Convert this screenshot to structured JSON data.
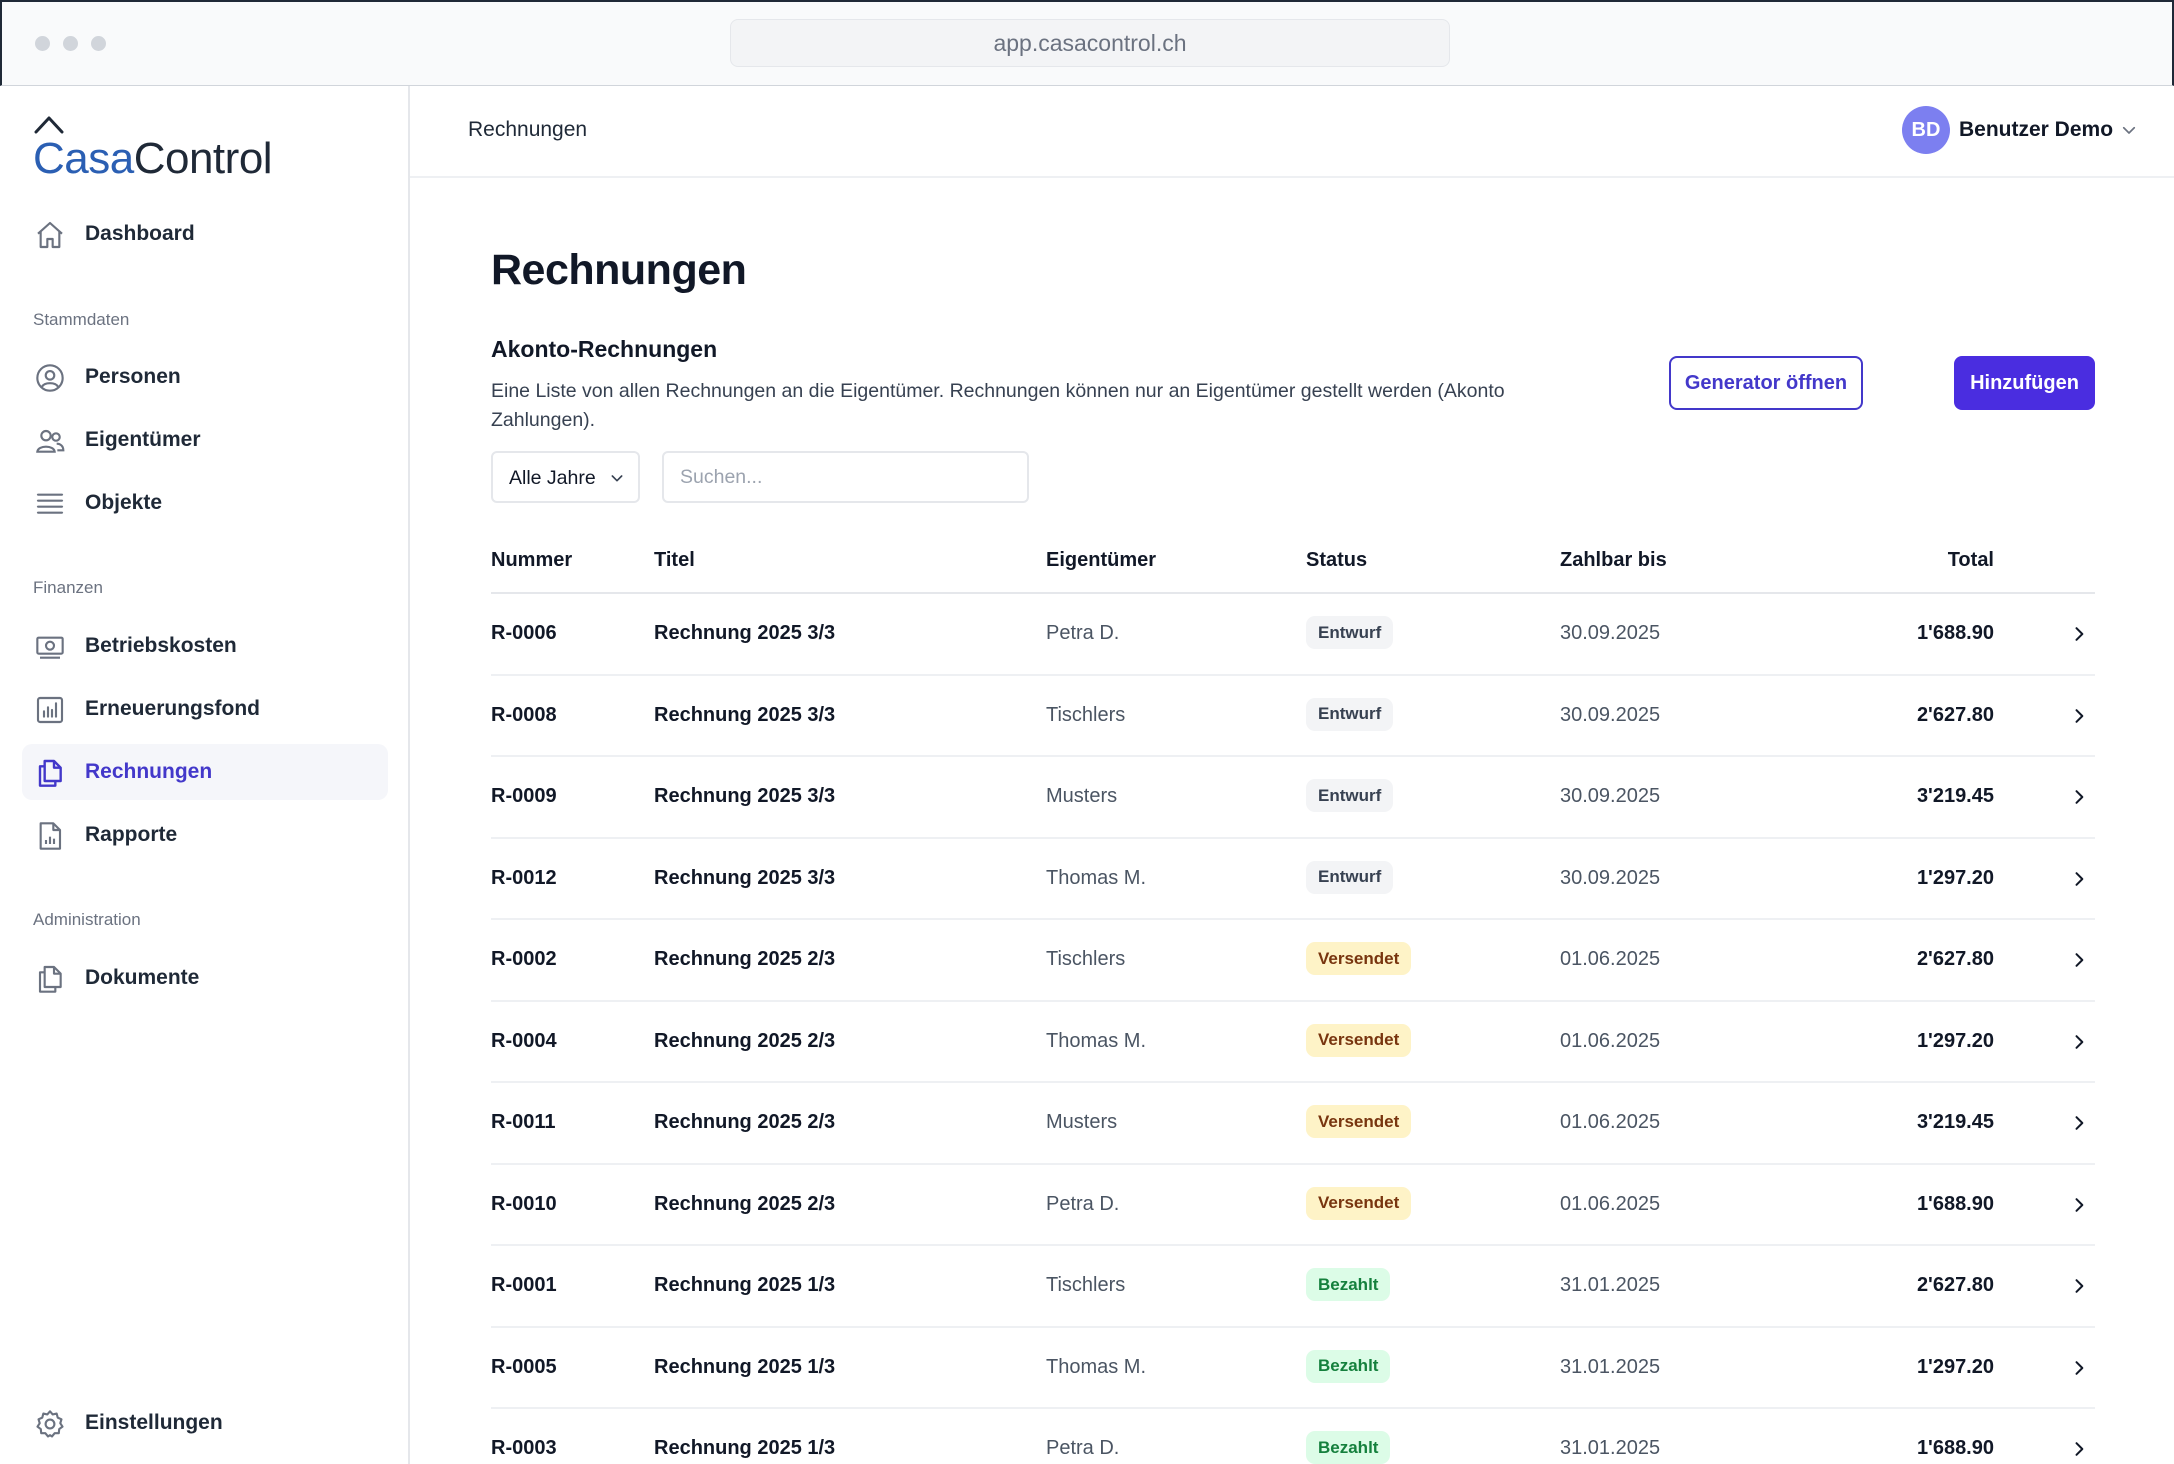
{
  "browser": {
    "url": "app.casacontrol.ch"
  },
  "brand": {
    "logo_part1": "Casa",
    "logo_part2": "Control",
    "accent": "#4338ca",
    "logo_blue": "#2b5fb3"
  },
  "sidebar": {
    "top_items": [
      {
        "label": "Dashboard",
        "icon": "home-icon"
      }
    ],
    "sections": [
      {
        "title": "Stammdaten",
        "items": [
          {
            "label": "Personen",
            "icon": "user-circle-icon"
          },
          {
            "label": "Eigentümer",
            "icon": "users-icon"
          },
          {
            "label": "Objekte",
            "icon": "list-icon"
          }
        ]
      },
      {
        "title": "Finanzen",
        "items": [
          {
            "label": "Betriebskosten",
            "icon": "money-icon"
          },
          {
            "label": "Erneuerungsfond",
            "icon": "bar-chart-icon"
          },
          {
            "label": "Rechnungen",
            "icon": "documents-icon",
            "active": true
          },
          {
            "label": "Rapporte",
            "icon": "report-icon"
          }
        ]
      },
      {
        "title": "Administration",
        "items": [
          {
            "label": "Dokumente",
            "icon": "documents-icon"
          }
        ]
      }
    ],
    "bottom_item": {
      "label": "Einstellungen",
      "icon": "gear-icon"
    }
  },
  "header": {
    "breadcrumb": "Rechnungen",
    "user_initials": "BD",
    "user_name": "Benutzer Demo"
  },
  "main": {
    "title": "Rechnungen",
    "subtitle": "Akonto-Rechnungen",
    "description": "Eine Liste von allen Rechnungen an die Eigentümer. Rechnungen können nur an Eigentümer gestellt werden (Akonto Zahlungen).",
    "generator_button": "Generator öffnen",
    "add_button": "Hinzufügen",
    "year_filter": "Alle Jahre",
    "search_placeholder": "Suchen..."
  },
  "table": {
    "columns": [
      "Nummer",
      "Titel",
      "Eigentümer",
      "Status",
      "Zahlbar bis",
      "Total"
    ],
    "rows": [
      {
        "number": "R-0006",
        "title": "Rechnung 2025 3/3",
        "owner": "Petra D.",
        "status": "Entwurf",
        "due": "30.09.2025",
        "total": "1'688.90"
      },
      {
        "number": "R-0008",
        "title": "Rechnung 2025 3/3",
        "owner": "Tischlers",
        "status": "Entwurf",
        "due": "30.09.2025",
        "total": "2'627.80"
      },
      {
        "number": "R-0009",
        "title": "Rechnung 2025 3/3",
        "owner": "Musters",
        "status": "Entwurf",
        "due": "30.09.2025",
        "total": "3'219.45"
      },
      {
        "number": "R-0012",
        "title": "Rechnung 2025 3/3",
        "owner": "Thomas M.",
        "status": "Entwurf",
        "due": "30.09.2025",
        "total": "1'297.20"
      },
      {
        "number": "R-0002",
        "title": "Rechnung 2025 2/3",
        "owner": "Tischlers",
        "status": "Versendet",
        "due": "01.06.2025",
        "total": "2'627.80"
      },
      {
        "number": "R-0004",
        "title": "Rechnung 2025 2/3",
        "owner": "Thomas M.",
        "status": "Versendet",
        "due": "01.06.2025",
        "total": "1'297.20"
      },
      {
        "number": "R-0011",
        "title": "Rechnung 2025 2/3",
        "owner": "Musters",
        "status": "Versendet",
        "due": "01.06.2025",
        "total": "3'219.45"
      },
      {
        "number": "R-0010",
        "title": "Rechnung 2025 2/3",
        "owner": "Petra D.",
        "status": "Versendet",
        "due": "01.06.2025",
        "total": "1'688.90"
      },
      {
        "number": "R-0001",
        "title": "Rechnung 2025 1/3",
        "owner": "Tischlers",
        "status": "Bezahlt",
        "due": "31.01.2025",
        "total": "2'627.80"
      },
      {
        "number": "R-0005",
        "title": "Rechnung 2025 1/3",
        "owner": "Thomas M.",
        "status": "Bezahlt",
        "due": "31.01.2025",
        "total": "1'297.20"
      },
      {
        "number": "R-0003",
        "title": "Rechnung 2025 1/3",
        "owner": "Petra D.",
        "status": "Bezahlt",
        "due": "31.01.2025",
        "total": "1'688.90"
      }
    ]
  }
}
